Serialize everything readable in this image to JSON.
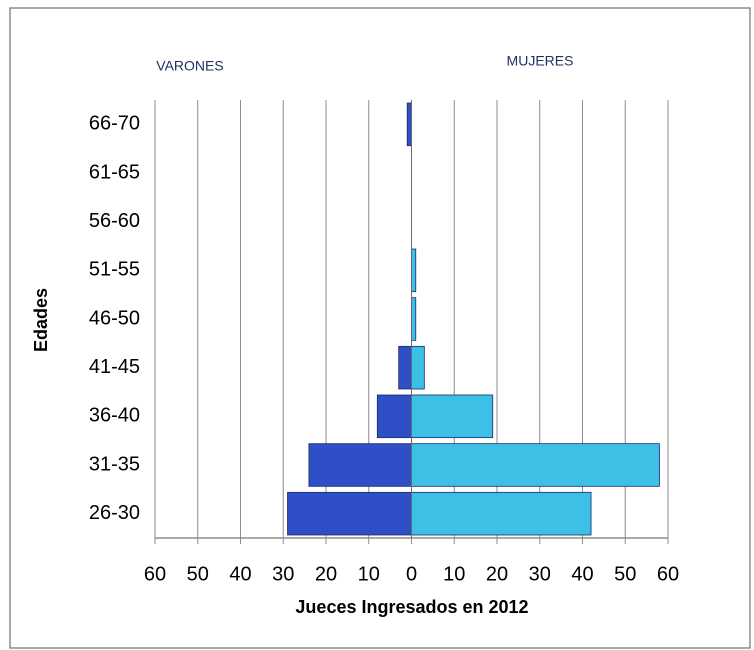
{
  "chart_data": {
    "type": "pyramid",
    "x_label": "Jueces Ingresados en  2012",
    "y_label": "Edades",
    "categories": [
      "66-70",
      "61-65",
      "56-60",
      "51-55",
      "46-50",
      "41-45",
      "36-40",
      "31-35",
      "26-30"
    ],
    "series": [
      {
        "name": "VARONES",
        "color": "#2f4fc7",
        "values": [
          -1,
          0,
          0,
          0,
          0,
          -3,
          -8,
          -24,
          -29
        ]
      },
      {
        "name": "MUJERES",
        "color": "#3cc0e6",
        "values": [
          0,
          0,
          0,
          1,
          1,
          3,
          19,
          58,
          42
        ]
      }
    ],
    "xlim": [
      -60,
      60
    ],
    "xticks": [
      {
        "value": -60,
        "label": "60"
      },
      {
        "value": -50,
        "label": "50"
      },
      {
        "value": -40,
        "label": "40"
      },
      {
        "value": -30,
        "label": "30"
      },
      {
        "value": -20,
        "label": "20"
      },
      {
        "value": -10,
        "label": "10"
      },
      0,
      10,
      20,
      30,
      40,
      50,
      60
    ],
    "grid": true
  }
}
